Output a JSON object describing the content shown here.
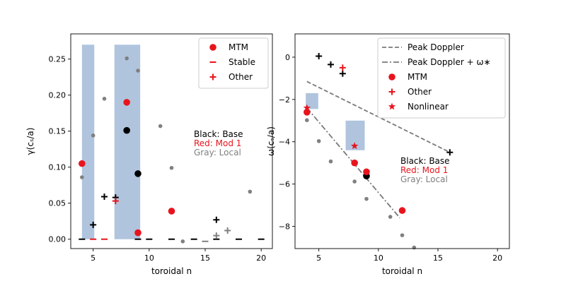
{
  "figure": {
    "colors": {
      "red": "#e8141d",
      "black": "#000000",
      "gray": "#808080",
      "lightgray": "#888888",
      "span": "#b0c4de",
      "dash": "#7a7a7a"
    }
  },
  "chart_data": [
    {
      "type": "scatter",
      "panel": "left",
      "xlabel": "toroidal n",
      "ylabel": "γ(cₛ/a)",
      "xlim": [
        3,
        21
      ],
      "ylim": [
        -0.013,
        0.285
      ],
      "xticks": [
        5,
        10,
        15,
        20
      ],
      "yticks": [
        0.0,
        0.05,
        0.1,
        0.15,
        0.2,
        0.25
      ],
      "ytick_labels": [
        "0.00",
        "0.05",
        "0.10",
        "0.15",
        "0.20",
        "0.25"
      ],
      "spans": [
        {
          "x0": 4.0,
          "x1": 5.1,
          "y0": 0.0,
          "y1": 0.27
        },
        {
          "x0": 6.9,
          "x1": 9.2,
          "y0": 0.0,
          "y1": 0.27
        }
      ],
      "legend": {
        "position": "upper right",
        "entries": [
          {
            "label": "MTM",
            "marker": "dot",
            "color": "red"
          },
          {
            "label": "Stable",
            "marker": "dash",
            "color": "red"
          },
          {
            "label": "Other",
            "marker": "plus",
            "color": "red"
          }
        ]
      },
      "annotation": {
        "lines": [
          {
            "text": "Black: Base",
            "color": "black"
          },
          {
            "text": "Red: Mod 1",
            "color": "red"
          },
          {
            "text": "Gray: Local",
            "color": "gray"
          }
        ]
      },
      "series": [
        {
          "name": "Base MTM",
          "marker": "dot",
          "color": "black",
          "points": [
            [
              8,
              0.151
            ],
            [
              9,
              0.091
            ]
          ]
        },
        {
          "name": "Base Other",
          "marker": "plus",
          "color": "black",
          "points": [
            [
              5,
              0.02
            ],
            [
              6,
              0.059
            ],
            [
              7,
              0.058
            ],
            [
              16,
              0.027
            ]
          ]
        },
        {
          "name": "Base Stable",
          "marker": "dash",
          "color": "black",
          "points": [
            [
              4,
              0.0
            ],
            [
              9,
              0.0
            ],
            [
              10,
              0.0
            ],
            [
              12,
              0.0
            ],
            [
              14,
              0.0
            ],
            [
              16,
              0.0
            ],
            [
              18,
              0.0
            ],
            [
              20,
              0.0
            ]
          ]
        },
        {
          "name": "Mod 1 MTM",
          "marker": "dot",
          "color": "red",
          "points": [
            [
              4,
              0.105
            ],
            [
              8,
              0.19
            ],
            [
              9,
              0.009
            ],
            [
              12,
              0.039
            ]
          ]
        },
        {
          "name": "Mod 1 Other",
          "marker": "plus",
          "color": "red",
          "points": [
            [
              7,
              0.053
            ]
          ]
        },
        {
          "name": "Mod 1 Stable",
          "marker": "dash",
          "color": "red",
          "points": [
            [
              5,
              0.0
            ],
            [
              6,
              0.0
            ]
          ]
        },
        {
          "name": "Local MTM",
          "marker": "smalldot",
          "color": "gray",
          "points": [
            [
              4,
              0.086
            ],
            [
              5,
              0.144
            ],
            [
              6,
              0.195
            ],
            [
              8,
              0.251
            ],
            [
              9,
              0.234
            ],
            [
              11,
              0.157
            ],
            [
              12,
              0.099
            ],
            [
              13,
              -0.003
            ],
            [
              19,
              0.066
            ]
          ]
        },
        {
          "name": "Local Other",
          "marker": "plus",
          "color": "gray",
          "points": [
            [
              16,
              0.005
            ],
            [
              17,
              0.012
            ]
          ]
        },
        {
          "name": "Local Stable",
          "marker": "dash",
          "color": "gray",
          "points": [
            [
              15,
              -0.003
            ]
          ]
        }
      ]
    },
    {
      "type": "scatter",
      "panel": "right",
      "xlabel": "toroidal n",
      "ylabel": "ω(cₛ/a)",
      "xlim": [
        3,
        21
      ],
      "ylim": [
        -9.05,
        1.1
      ],
      "xticks": [
        5,
        10,
        15,
        20
      ],
      "yticks": [
        0,
        -2,
        -4,
        -6,
        -8
      ],
      "ytick_labels": [
        "0",
        "−2",
        "−4",
        "−6",
        "−8"
      ],
      "boxes": [
        {
          "x0": 3.9,
          "x1": 4.95,
          "y0": -2.45,
          "y1": -1.7
        },
        {
          "x0": 7.25,
          "x1": 8.85,
          "y0": -4.4,
          "y1": -3.0
        }
      ],
      "lines": [
        {
          "name": "Peak Doppler",
          "style": "dashed",
          "points": [
            [
              4,
              -1.15
            ],
            [
              16,
              -4.5
            ]
          ]
        },
        {
          "name": "Peak Doppler + ω*",
          "style": "dashdot",
          "points": [
            [
              4,
              -2.4
            ],
            [
              11.8,
              -7.6
            ]
          ]
        }
      ],
      "legend": {
        "position": "upper right",
        "entries": [
          {
            "label": "Peak Doppler",
            "marker": "dashed",
            "color": "dash"
          },
          {
            "label": "Peak Doppler + ω∗",
            "marker": "dashdot",
            "color": "dash"
          },
          {
            "label": "MTM",
            "marker": "dot",
            "color": "red"
          },
          {
            "label": "Other",
            "marker": "plus",
            "color": "red"
          },
          {
            "label": "Nonlinear",
            "marker": "star",
            "color": "red"
          }
        ]
      },
      "annotation": {
        "lines": [
          {
            "text": "Black: Base",
            "color": "black"
          },
          {
            "text": "Red: Mod 1",
            "color": "red"
          },
          {
            "text": "Gray: Local",
            "color": "gray"
          }
        ]
      },
      "series": [
        {
          "name": "Base MTM",
          "marker": "dot",
          "color": "black",
          "points": [
            [
              9,
              -5.62
            ]
          ]
        },
        {
          "name": "Base Other",
          "marker": "plus",
          "color": "black",
          "points": [
            [
              5,
              0.05
            ],
            [
              6,
              -0.35
            ],
            [
              7,
              -0.78
            ],
            [
              16,
              -4.5
            ]
          ]
        },
        {
          "name": "Mod 1 MTM",
          "marker": "dot",
          "color": "red",
          "points": [
            [
              4,
              -2.6
            ],
            [
              8,
              -5.0
            ],
            [
              9,
              -5.42
            ],
            [
              12,
              -7.25
            ]
          ]
        },
        {
          "name": "Mod 1 Other",
          "marker": "plus",
          "color": "red",
          "points": [
            [
              7,
              -0.5
            ]
          ]
        },
        {
          "name": "Mod 1 Nonlinear",
          "marker": "star",
          "color": "red",
          "points": [
            [
              4,
              -2.4
            ],
            [
              8,
              -4.2
            ]
          ]
        },
        {
          "name": "Local MTM",
          "marker": "smalldot",
          "color": "gray",
          "points": [
            [
              4,
              -2.98
            ],
            [
              5,
              -3.97
            ],
            [
              6,
              -4.93
            ],
            [
              8,
              -5.88
            ],
            [
              9,
              -6.7
            ],
            [
              11,
              -7.55
            ],
            [
              12,
              -8.42
            ],
            [
              13,
              -9.0
            ]
          ]
        }
      ]
    }
  ]
}
